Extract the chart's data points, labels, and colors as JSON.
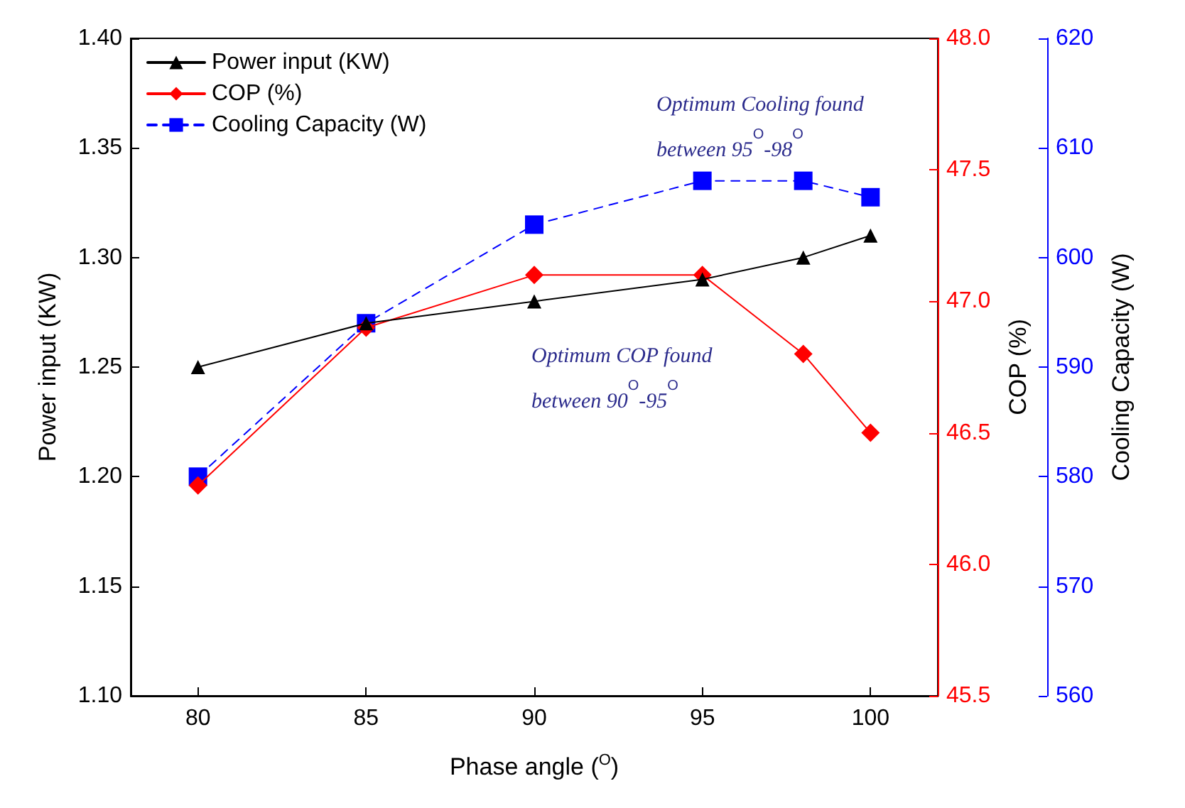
{
  "chart_data": {
    "type": "line",
    "x": [
      80,
      85,
      90,
      95,
      98,
      100
    ],
    "xlabel": "Phase angle ($^{O}$)",
    "ylabel": "Power input (KW)",
    "y2label": "COP (%)",
    "y3label": "Cooling Capacity (W)",
    "xlim": [
      78,
      102
    ],
    "xticks": [
      80,
      85,
      90,
      95,
      100
    ],
    "ylim": [
      1.1,
      1.4
    ],
    "yticks": [
      {
        "value": 1.1,
        "label": "1.10"
      },
      1.15,
      {
        "value": 1.2,
        "label": "1.20"
      },
      1.25,
      {
        "value": 1.3,
        "label": "1.30"
      },
      1.35,
      {
        "value": 1.4,
        "label": "1.40"
      }
    ],
    "y2lim": [
      45.5,
      48
    ],
    "y2ticks": [
      45.5,
      {
        "value": 46,
        "label": "46.0"
      },
      46.5,
      {
        "value": 47,
        "label": "47.0"
      },
      47.5,
      {
        "value": 48,
        "label": "48.0"
      }
    ],
    "y3lim": [
      560,
      620
    ],
    "y3ticks": [
      560,
      570,
      580,
      590,
      600,
      610,
      620
    ],
    "grid": false,
    "legend": "top left",
    "series": [
      {
        "name": "Power input (KW)",
        "color": "#000000",
        "marker": "triangle",
        "line_style": "solid",
        "values": [
          1.25,
          1.27,
          1.28,
          1.29,
          1.3,
          1.31
        ]
      },
      {
        "name": "COP (%)",
        "color": "#ff0000",
        "marker": "diamond",
        "line_style": "solid",
        "axis": "y2",
        "values": [
          46.3,
          46.9,
          47.1,
          47.1,
          46.8,
          46.5
        ]
      },
      {
        "name": "Cooling Capacity (W)",
        "color": "#0000ff",
        "marker": "square",
        "line_style": "dashed",
        "axis": "y3",
        "values": [
          580,
          594,
          603,
          607,
          607,
          605.5
        ]
      }
    ],
    "annotations": [
      "Optimum Cooling found\nbetween 95$^{O}$-98$^{O}$",
      "Optimum COP found\nbetween 90$^{O}$-95$^{O}$"
    ]
  }
}
